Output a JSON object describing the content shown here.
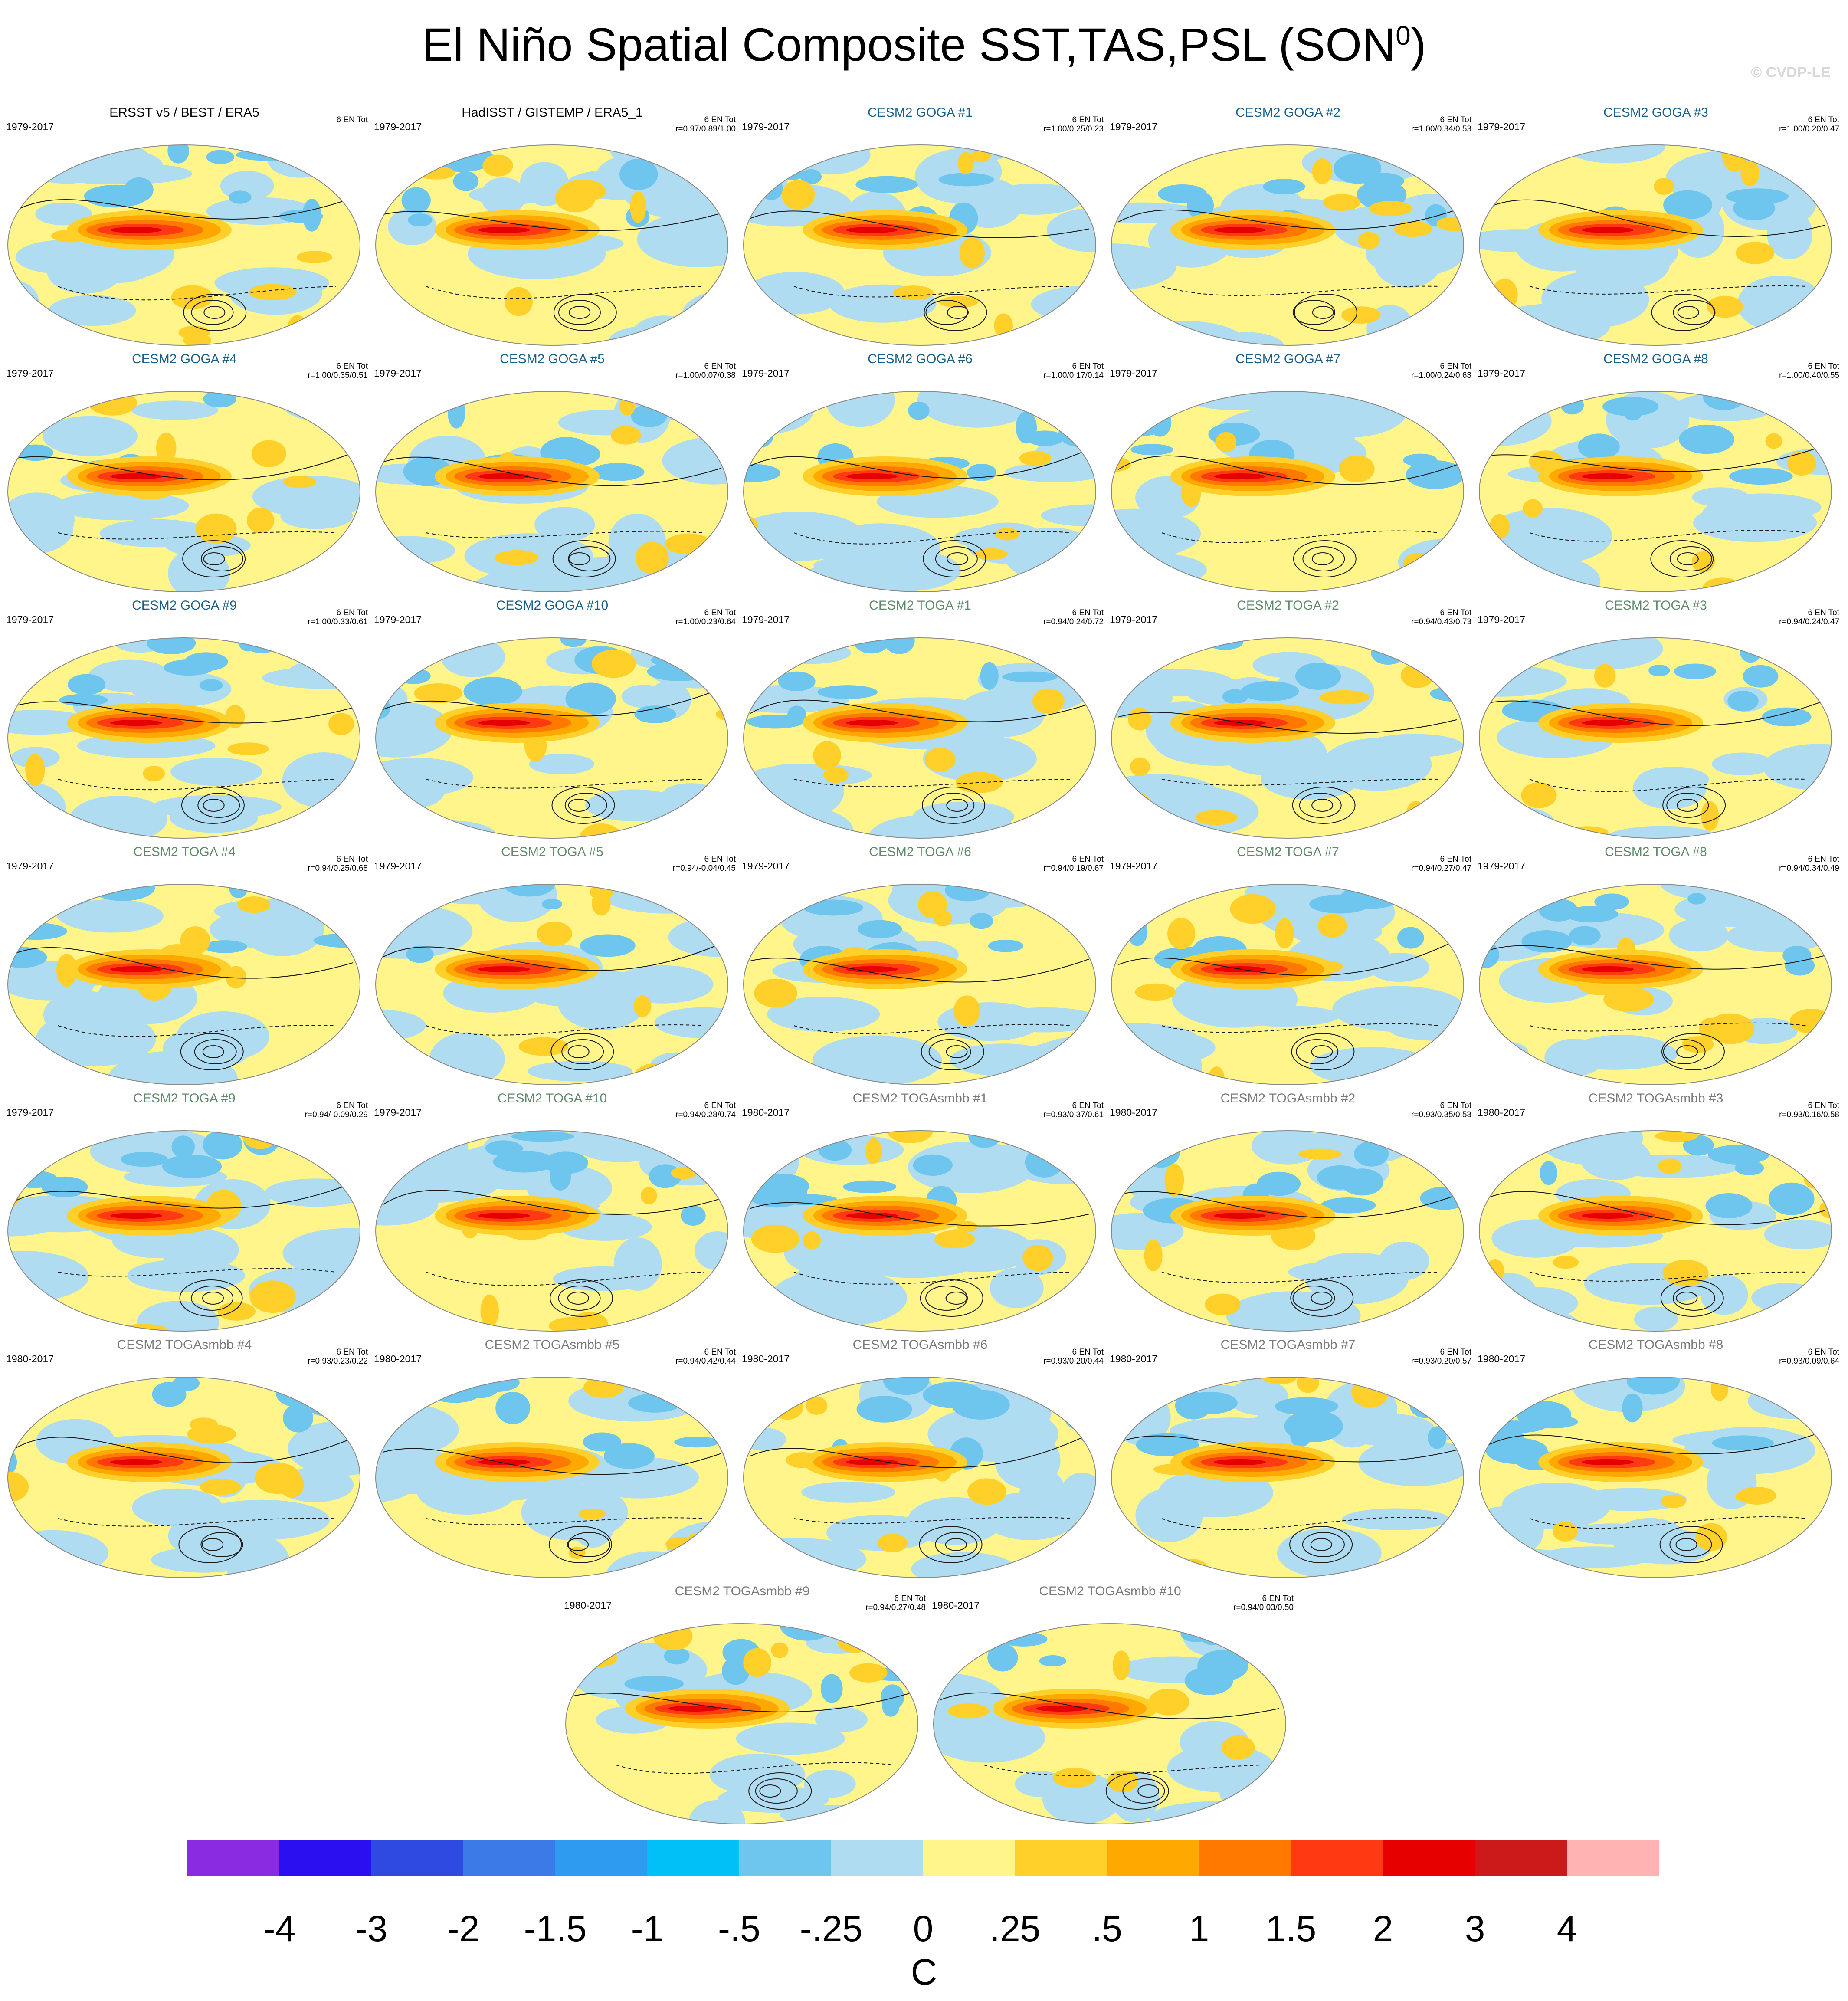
{
  "title": {
    "main": "El Niño Spatial Composite SST,TAS,PSL (SON",
    "superscript": "0",
    "close": ")"
  },
  "copyright": "© CVDP-LE",
  "colors": {
    "obs_title": "#000000",
    "goga_title": "#1a5f8a",
    "toga_title": "#5f8a6a",
    "togasmbb_title": "#7a7a7a",
    "map_border": "#8a8a8a",
    "contour": "#1a1a1a"
  },
  "panels": [
    {
      "title": "ERSST v5 / BEST / ERA5",
      "years": "1979-2017",
      "en_label": "6 EN Tot",
      "r": "",
      "group": "obs"
    },
    {
      "title": "HadISST / GISTEMP / ERA5_1",
      "years": "1979-2017",
      "en_label": "6 EN Tot",
      "r": "r=0.97/0.89/1.00",
      "group": "obs"
    },
    {
      "title": "CESM2 GOGA #1",
      "years": "1979-2017",
      "en_label": "6 EN Tot",
      "r": "r=1.00/0.25/0.23",
      "group": "goga"
    },
    {
      "title": "CESM2 GOGA #2",
      "years": "1979-2017",
      "en_label": "6 EN Tot",
      "r": "r=1.00/0.34/0.53",
      "group": "goga"
    },
    {
      "title": "CESM2 GOGA #3",
      "years": "1979-2017",
      "en_label": "6 EN Tot",
      "r": "r=1.00/0.20/0.47",
      "group": "goga"
    },
    {
      "title": "CESM2 GOGA #4",
      "years": "1979-2017",
      "en_label": "6 EN Tot",
      "r": "r=1.00/0.35/0.51",
      "group": "goga"
    },
    {
      "title": "CESM2 GOGA #5",
      "years": "1979-2017",
      "en_label": "6 EN Tot",
      "r": "r=1.00/0.07/0.38",
      "group": "goga"
    },
    {
      "title": "CESM2 GOGA #6",
      "years": "1979-2017",
      "en_label": "6 EN Tot",
      "r": "r=1.00/0.17/0.14",
      "group": "goga"
    },
    {
      "title": "CESM2 GOGA #7",
      "years": "1979-2017",
      "en_label": "6 EN Tot",
      "r": "r=1.00/0.24/0.63",
      "group": "goga"
    },
    {
      "title": "CESM2 GOGA #8",
      "years": "1979-2017",
      "en_label": "6 EN Tot",
      "r": "r=1.00/0.40/0.55",
      "group": "goga"
    },
    {
      "title": "CESM2 GOGA #9",
      "years": "1979-2017",
      "en_label": "6 EN Tot",
      "r": "r=1.00/0.33/0.61",
      "group": "goga"
    },
    {
      "title": "CESM2 GOGA #10",
      "years": "1979-2017",
      "en_label": "6 EN Tot",
      "r": "r=1.00/0.23/0.64",
      "group": "goga"
    },
    {
      "title": "CESM2 TOGA #1",
      "years": "1979-2017",
      "en_label": "6 EN Tot",
      "r": "r=0.94/0.24/0.72",
      "group": "toga"
    },
    {
      "title": "CESM2 TOGA #2",
      "years": "1979-2017",
      "en_label": "6 EN Tot",
      "r": "r=0.94/0.43/0.73",
      "group": "toga"
    },
    {
      "title": "CESM2 TOGA #3",
      "years": "1979-2017",
      "en_label": "6 EN Tot",
      "r": "r=0.94/0.24/0.47",
      "group": "toga"
    },
    {
      "title": "CESM2 TOGA #4",
      "years": "1979-2017",
      "en_label": "6 EN Tot",
      "r": "r=0.94/0.25/0.68",
      "group": "toga"
    },
    {
      "title": "CESM2 TOGA #5",
      "years": "1979-2017",
      "en_label": "6 EN Tot",
      "r": "r=0.94/-0.04/0.45",
      "group": "toga"
    },
    {
      "title": "CESM2 TOGA #6",
      "years": "1979-2017",
      "en_label": "6 EN Tot",
      "r": "r=0.94/0.19/0.67",
      "group": "toga"
    },
    {
      "title": "CESM2 TOGA #7",
      "years": "1979-2017",
      "en_label": "6 EN Tot",
      "r": "r=0.94/0.27/0.47",
      "group": "toga"
    },
    {
      "title": "CESM2 TOGA #8",
      "years": "1979-2017",
      "en_label": "6 EN Tot",
      "r": "r=0.94/0.34/0.49",
      "group": "toga"
    },
    {
      "title": "CESM2 TOGA #9",
      "years": "1979-2017",
      "en_label": "6 EN Tot",
      "r": "r=0.94/-0.09/0.29",
      "group": "toga"
    },
    {
      "title": "CESM2 TOGA #10",
      "years": "1979-2017",
      "en_label": "6 EN Tot",
      "r": "r=0.94/0.28/0.74",
      "group": "toga"
    },
    {
      "title": "CESM2 TOGAsmbb #1",
      "years": "1980-2017",
      "en_label": "6 EN Tot",
      "r": "r=0.93/0.37/0.61",
      "group": "togasmbb"
    },
    {
      "title": "CESM2 TOGAsmbb #2",
      "years": "1980-2017",
      "en_label": "6 EN Tot",
      "r": "r=0.93/0.35/0.53",
      "group": "togasmbb"
    },
    {
      "title": "CESM2 TOGAsmbb #3",
      "years": "1980-2017",
      "en_label": "6 EN Tot",
      "r": "r=0.93/0.16/0.58",
      "group": "togasmbb"
    },
    {
      "title": "CESM2 TOGAsmbb #4",
      "years": "1980-2017",
      "en_label": "6 EN Tot",
      "r": "r=0.93/0.23/0.22",
      "group": "togasmbb"
    },
    {
      "title": "CESM2 TOGAsmbb #5",
      "years": "1980-2017",
      "en_label": "6 EN Tot",
      "r": "r=0.94/0.42/0.44",
      "group": "togasmbb"
    },
    {
      "title": "CESM2 TOGAsmbb #6",
      "years": "1980-2017",
      "en_label": "6 EN Tot",
      "r": "r=0.93/0.20/0.44",
      "group": "togasmbb"
    },
    {
      "title": "CESM2 TOGAsmbb #7",
      "years": "1980-2017",
      "en_label": "6 EN Tot",
      "r": "r=0.93/0.20/0.57",
      "group": "togasmbb"
    },
    {
      "title": "CESM2 TOGAsmbb #8",
      "years": "1980-2017",
      "en_label": "6 EN Tot",
      "r": "r=0.93/0.09/0.64",
      "group": "togasmbb"
    },
    {
      "title": "CESM2 TOGAsmbb #9",
      "years": "1980-2017",
      "en_label": "6 EN Tot",
      "r": "r=0.94/0.27/0.48",
      "group": "togasmbb"
    },
    {
      "title": "CESM2 TOGAsmbb #10",
      "years": "1980-2017",
      "en_label": "6 EN Tot",
      "r": "r=0.94/0.03/0.50",
      "group": "togasmbb"
    }
  ],
  "colorbar": {
    "colors": [
      "#8a2be2",
      "#2a10f0",
      "#2f4ae0",
      "#3a7be8",
      "#2f9bf0",
      "#00c0f8",
      "#6ec5ee",
      "#b0dcf2",
      "#fff58a",
      "#ffd02a",
      "#ffa800",
      "#ff7800",
      "#ff3a12",
      "#e60000",
      "#cc1a1a",
      "#ffb3b3"
    ],
    "labels": [
      "-4",
      "-3",
      "-2",
      "-1.5",
      "-1",
      "-.5",
      "-.25",
      "0",
      ".25",
      ".5",
      "1",
      "1.5",
      "2",
      "3",
      "4"
    ],
    "unit": "C"
  }
}
